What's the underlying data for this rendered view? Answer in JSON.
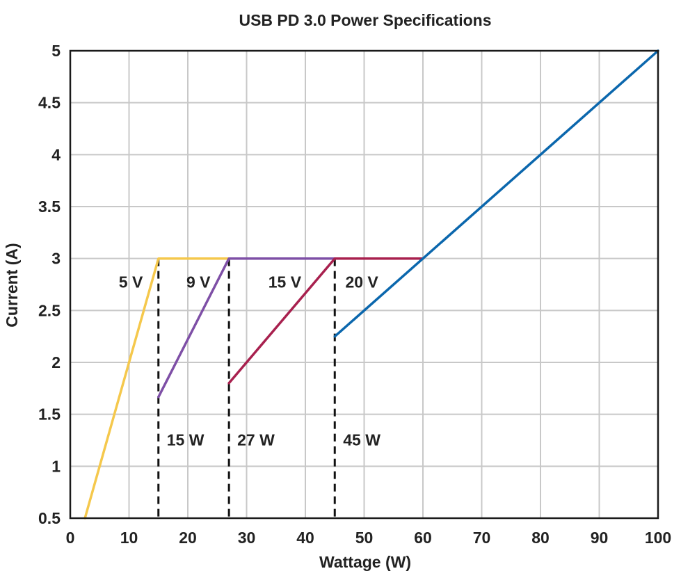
{
  "chart_data": {
    "type": "line",
    "title": "USB PD 3.0 Power Specifications",
    "xlabel": "Wattage (W)",
    "ylabel": "Current (A)",
    "xlim": [
      0,
      100
    ],
    "ylim": [
      0.5,
      5
    ],
    "xticks": [
      0,
      10,
      20,
      30,
      40,
      50,
      60,
      70,
      80,
      90,
      100
    ],
    "yticks": [
      0.5,
      1,
      1.5,
      2,
      2.5,
      3,
      3.5,
      4,
      4.5,
      5
    ],
    "ytick_labels": [
      "0.5",
      "1",
      "1.5",
      "2",
      "2.5",
      "3",
      "3.5",
      "4",
      "4.5",
      "5"
    ],
    "grid": true,
    "series": [
      {
        "name": "5 V",
        "color": "#f5c84c",
        "points": [
          [
            2.5,
            0.5
          ],
          [
            15,
            3
          ],
          [
            27,
            3
          ]
        ]
      },
      {
        "name": "9 V",
        "color": "#7e4fa6",
        "points": [
          [
            15,
            1.6667
          ],
          [
            27,
            3
          ],
          [
            45,
            3
          ]
        ]
      },
      {
        "name": "15 V",
        "color": "#a8204e",
        "points": [
          [
            27,
            1.8
          ],
          [
            45,
            3
          ],
          [
            60,
            3
          ]
        ]
      },
      {
        "name": "20 V",
        "color": "#0b67ad",
        "points": [
          [
            45,
            2.25
          ],
          [
            100,
            5
          ]
        ]
      }
    ],
    "series_labels": [
      {
        "text": "5 V",
        "x": 10.3,
        "y": 2.72
      },
      {
        "text": "9 V",
        "x": 21.8,
        "y": 2.72
      },
      {
        "text": "15 V",
        "x": 36.5,
        "y": 2.72
      },
      {
        "text": "20 V",
        "x": 49.6,
        "y": 2.72
      }
    ],
    "vlines": [
      {
        "x": 15,
        "label": "15 W"
      },
      {
        "x": 27,
        "label": "27 W"
      },
      {
        "x": 45,
        "label": "45 W"
      }
    ],
    "vline_label_y": 1.2
  }
}
